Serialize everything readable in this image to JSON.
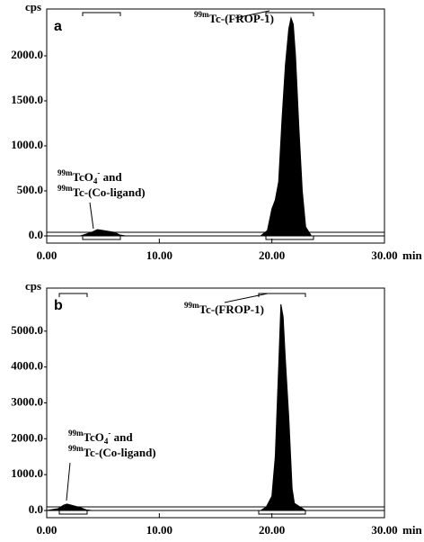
{
  "chart_data": [
    {
      "type": "area",
      "panel_label": "a",
      "y_label": "cps",
      "x_label": "min",
      "color": "#000000",
      "x": [
        0,
        3,
        4,
        4.5,
        5,
        6,
        6.5,
        7,
        10,
        15,
        19,
        19.6,
        20,
        20.3,
        20.6,
        20.9,
        21.2,
        21.5,
        21.7,
        21.9,
        22.1,
        22.4,
        22.7,
        23,
        23.5,
        27,
        30
      ],
      "values": [
        0,
        0,
        40,
        70,
        60,
        40,
        10,
        0,
        0,
        0,
        0,
        60,
        300,
        400,
        600,
        1300,
        1900,
        2300,
        2420,
        2350,
        2000,
        1200,
        500,
        100,
        0,
        0,
        0
      ],
      "xlim": [
        0,
        30
      ],
      "xticks": [
        {
          "value": 0,
          "label": "0.00"
        },
        {
          "value": 10,
          "label": "10.00"
        },
        {
          "value": 20,
          "label": "20.00"
        },
        {
          "value": 30,
          "label": "30.00"
        }
      ],
      "ylim": [
        -80,
        2520
      ],
      "yticks": [
        {
          "value": 0,
          "label": "0.0"
        },
        {
          "value": 500,
          "label": "500.0"
        },
        {
          "value": 1000,
          "label": "1000.0"
        },
        {
          "value": 1500,
          "label": "1500.0"
        },
        {
          "value": 2000,
          "label": "2000.0"
        }
      ],
      "annotations": [
        {
          "lines": [
            [
              {
                "text": "99m",
                "sup": true
              },
              {
                "text": "Tc-(FROP-1)"
              }
            ]
          ]
        },
        {
          "lines": [
            [
              {
                "text": "99m",
                "sup": true
              },
              {
                "text": "TcO"
              },
              {
                "text": "4",
                "sub": true
              },
              {
                "text": "-",
                "sup": true
              },
              {
                "text": " and"
              }
            ],
            [
              {
                "text": "99m",
                "sup": true
              },
              {
                "text": "Tc-(Co-ligand)"
              }
            ]
          ]
        }
      ]
    },
    {
      "type": "area",
      "panel_label": "b",
      "y_label": "cps",
      "x_label": "min",
      "color": "#000000",
      "x": [
        0,
        1,
        1.5,
        1.8,
        2.2,
        3,
        3.5,
        4,
        10,
        19,
        19.5,
        20,
        20.3,
        20.6,
        20.8,
        21,
        21.2,
        21.5,
        21.8,
        22,
        22.5,
        23,
        30
      ],
      "values": [
        0,
        50,
        150,
        180,
        150,
        80,
        20,
        0,
        0,
        0,
        100,
        400,
        1500,
        4000,
        5750,
        5400,
        4200,
        2600,
        600,
        200,
        100,
        0,
        0
      ],
      "xlim": [
        0,
        30
      ],
      "xticks": [
        {
          "value": 0,
          "label": "0.00"
        },
        {
          "value": 10,
          "label": "10.00"
        },
        {
          "value": 20,
          "label": "20.00"
        },
        {
          "value": 30,
          "label": "30.00"
        }
      ],
      "ylim": [
        -200,
        6200
      ],
      "yticks": [
        {
          "value": 0,
          "label": "0.0"
        },
        {
          "value": 1000,
          "label": "1000.0"
        },
        {
          "value": 2000,
          "label": "2000.0"
        },
        {
          "value": 3000,
          "label": "3000.0"
        },
        {
          "value": 4000,
          "label": "4000.0"
        },
        {
          "value": 5000,
          "label": "5000.0"
        }
      ],
      "annotations": [
        {
          "lines": [
            [
              {
                "text": "99m",
                "sup": true
              },
              {
                "text": "Tc-(FROP-1)"
              }
            ]
          ]
        },
        {
          "lines": [
            [
              {
                "text": "99m",
                "sup": true
              },
              {
                "text": "TcO"
              },
              {
                "text": "4",
                "sub": true
              },
              {
                "text": "-",
                "sup": true
              },
              {
                "text": " and"
              }
            ],
            [
              {
                "text": "99m",
                "sup": true
              },
              {
                "text": "Tc-(Co-ligand)"
              }
            ]
          ]
        }
      ]
    }
  ]
}
